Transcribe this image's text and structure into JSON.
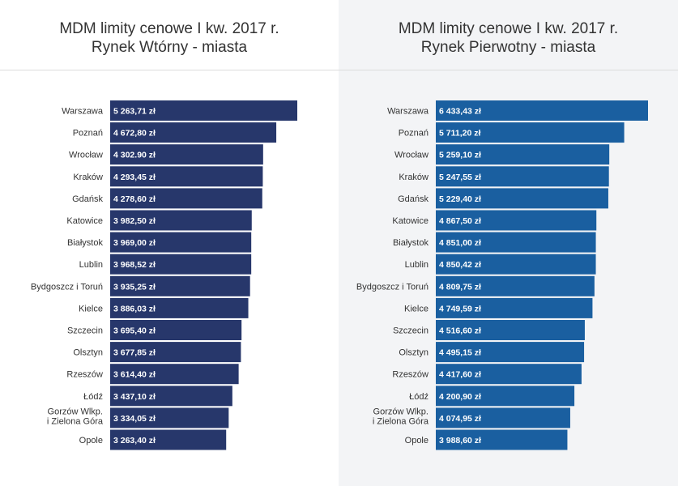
{
  "chart_data": [
    {
      "type": "bar",
      "title": "MDM limity cenowe I kw. 2017 r.",
      "subtitle": "Rynek Wtórny - miasta",
      "orientation": "horizontal",
      "color": "#27376b",
      "categories": [
        "Warszawa",
        "Poznań",
        "Wrocław",
        "Kraków",
        "Gdańsk",
        "Katowice",
        "Białystok",
        "Lublin",
        "Bydgoszcz i Toruń",
        "Kielce",
        "Szczecin",
        "Olsztyn",
        "Rzeszów",
        "Łódź",
        "Gorzów Wlkp. i Zielona Góra",
        "Opole"
      ],
      "values": [
        5263.71,
        4672.8,
        4302.9,
        4293.45,
        4278.6,
        3982.5,
        3969.0,
        3968.52,
        3935.25,
        3886.03,
        3695.4,
        3677.85,
        3614.4,
        3437.1,
        3334.05,
        3263.4
      ],
      "value_labels": [
        "5 263,71 zł",
        "4 672,80 zł",
        "4 302.90 zł",
        "4 293,45 zł",
        "4 278,60 zł",
        "3 982,50 zł",
        "3 969,00 zł",
        "3 968,52 zł",
        "3 935,25 zł",
        "3 886,03 zł",
        "3 695,40 zł",
        "3 677,85 zł",
        "3 614,40 zł",
        "3 437,10 zł",
        "3 334,05 zł",
        "3 263,40 zł"
      ],
      "grid": false,
      "legend": "none"
    },
    {
      "type": "bar",
      "title": "MDM limity cenowe I kw. 2017 r.",
      "subtitle": "Rynek Pierwotny - miasta",
      "orientation": "horizontal",
      "color": "#1a5fa0",
      "categories": [
        "Warszawa",
        "Poznań",
        "Wrocław",
        "Kraków",
        "Gdańsk",
        "Katowice",
        "Białystok",
        "Lublin",
        "Bydgoszcz i Toruń",
        "Kielce",
        "Szczecin",
        "Olsztyn",
        "Rzeszów",
        "Łódź",
        "Gorzów Wlkp. i Zielona Góra",
        "Opole"
      ],
      "values": [
        6433.43,
        5711.2,
        5259.1,
        5247.55,
        5229.4,
        4867.5,
        4851.0,
        4850.42,
        4809.75,
        4749.59,
        4516.6,
        4495.15,
        4417.6,
        4200.9,
        4074.95,
        3988.6
      ],
      "value_labels": [
        "6 433,43 zł",
        "5 711,20 zł",
        "5 259,10 zł",
        "5 247,55 zł",
        "5 229,40 zł",
        "4 867,50 zł",
        "4 851,00 zł",
        "4 850,42 zł",
        "4 809,75 zł",
        "4 749,59 zł",
        "4 516,60 zł",
        "4 495,15 zł",
        "4 417,60 zł",
        "4 200,90 zł",
        "4 074,95 zł",
        "3 988,60 zł"
      ],
      "grid": false,
      "legend": "none"
    }
  ]
}
